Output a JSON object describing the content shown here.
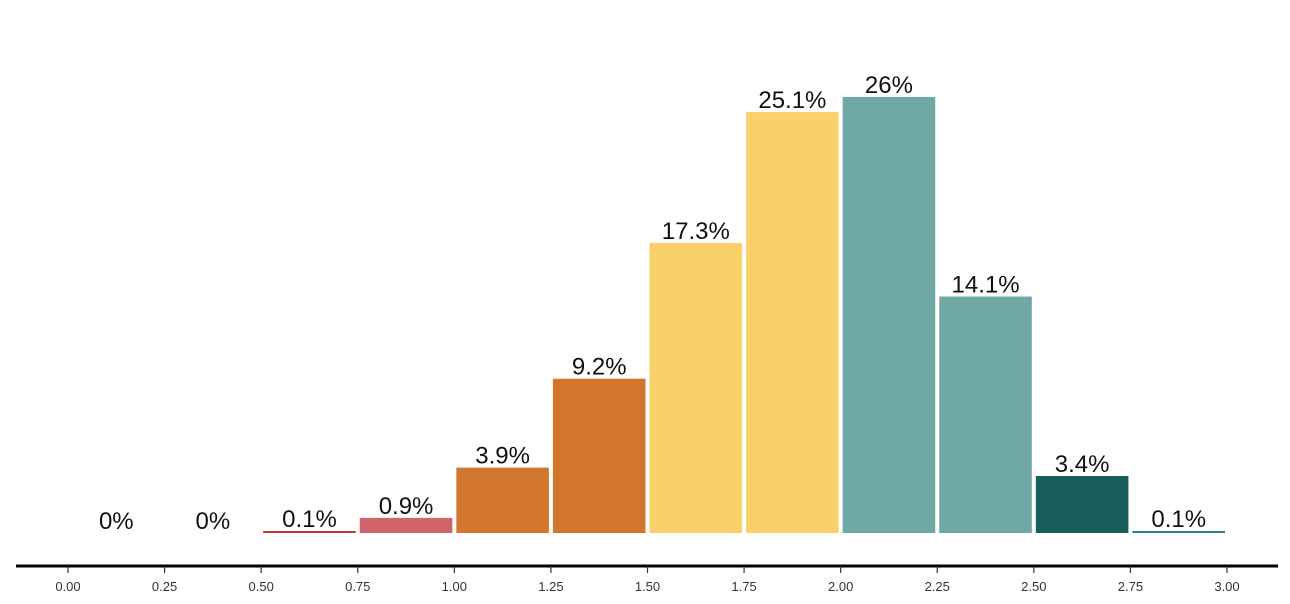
{
  "chart_data": {
    "type": "bar",
    "bin_edges": [
      0.0,
      0.25,
      0.5,
      0.75,
      1.0,
      1.25,
      1.5,
      1.75,
      2.0,
      2.25,
      2.5,
      2.75,
      3.0
    ],
    "values": [
      0,
      0,
      0.1,
      0.9,
      3.9,
      9.2,
      17.3,
      25.1,
      26,
      14.1,
      3.4,
      0.1
    ],
    "data_labels": [
      "0%",
      "0%",
      "0.1%",
      "0.9%",
      "3.9%",
      "9.2%",
      "17.3%",
      "25.1%",
      "26%",
      "14.1%",
      "3.4%",
      "0.1%"
    ],
    "colors": [
      "#c0392b",
      "#c0392b",
      "#c0392b",
      "#d0646a",
      "#d2762e",
      "#d2762e",
      "#fad06b",
      "#fad06b",
      "#6fa8a4",
      "#6fa8a4",
      "#175e5c",
      "#2f7f80"
    ],
    "x_ticks": [
      "0.00",
      "0.25",
      "0.50",
      "0.75",
      "1.00",
      "1.25",
      "1.50",
      "1.75",
      "2.00",
      "2.25",
      "2.50",
      "2.75",
      "3.00"
    ],
    "xlim": [
      0,
      3
    ],
    "ylim": [
      0,
      27
    ],
    "title": "",
    "xlabel": "",
    "ylabel": "",
    "grid": false
  }
}
